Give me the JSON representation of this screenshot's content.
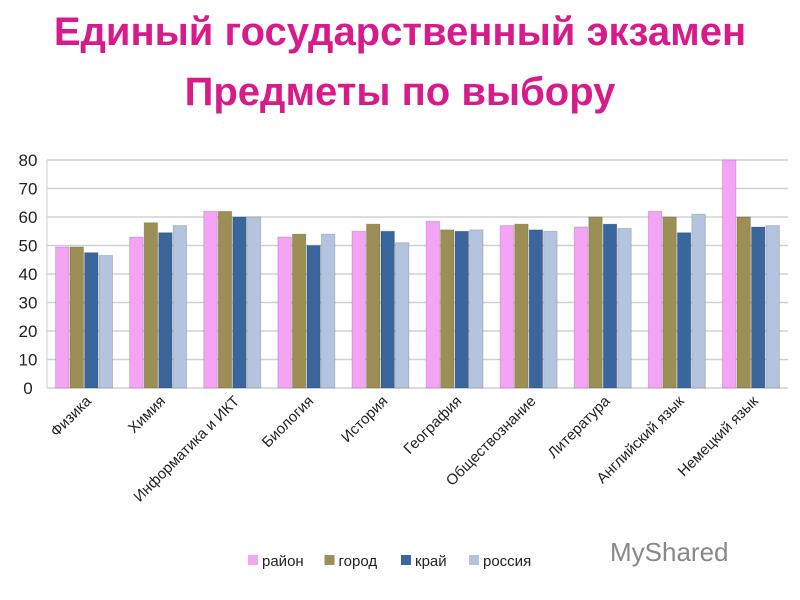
{
  "title_line1": "Единый государственный экзамен",
  "title_line2": "Предметы по выбору",
  "watermark": "MyShared",
  "chart_data": {
    "type": "bar",
    "title": "Единый государственный экзамен Предметы по выбору",
    "categories": [
      "Физика",
      "Химия",
      "Информатика и ИКТ",
      "Биология",
      "История",
      "География",
      "Обществознание",
      "Литература",
      "Английский язык",
      "Немецкий язык"
    ],
    "series": [
      {
        "name": "район",
        "color": "#f5a3f5",
        "values": [
          49.5,
          53,
          62,
          53,
          55,
          58.5,
          57,
          56.5,
          62,
          80
        ]
      },
      {
        "name": "город",
        "color": "#9c8f55",
        "values": [
          49.5,
          58,
          62,
          54,
          57.5,
          55.5,
          57.5,
          60,
          60,
          60
        ]
      },
      {
        "name": "край",
        "color": "#3a669c",
        "values": [
          47.5,
          54.5,
          60,
          50,
          55,
          55,
          55.5,
          57.5,
          54.5,
          56.5
        ]
      },
      {
        "name": "россия",
        "color": "#b4c4de",
        "values": [
          46.5,
          57,
          60,
          54,
          51,
          55.5,
          55,
          56,
          61,
          57
        ]
      }
    ],
    "ylim": [
      0,
      80
    ],
    "yticks": [
      0,
      10,
      20,
      30,
      40,
      50,
      60,
      70,
      80
    ],
    "grid": true,
    "legend": "bottom"
  }
}
